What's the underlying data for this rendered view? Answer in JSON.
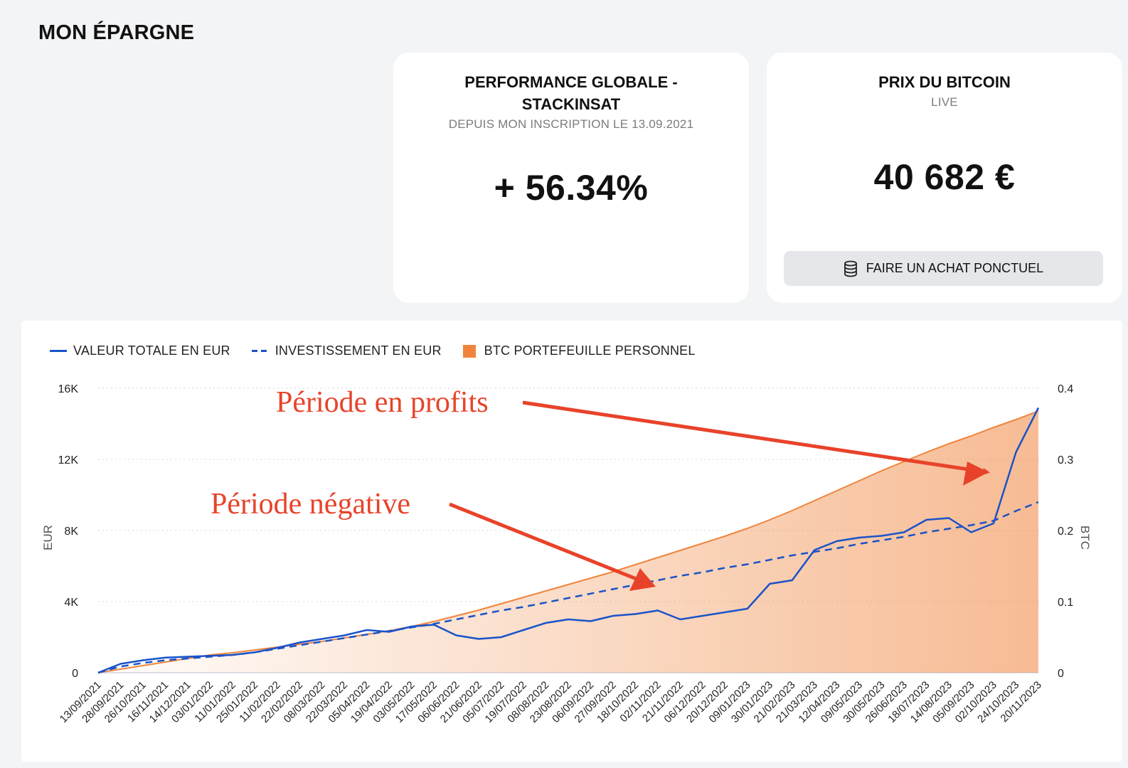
{
  "page": {
    "title": "MON ÉPARGNE"
  },
  "performance_card": {
    "title": "PERFORMANCE GLOBALE - STACKINSAT",
    "subtitle": "DEPUIS MON INSCRIPTION LE 13.09.2021",
    "value": "+ 56.34%"
  },
  "bitcoin_card": {
    "title": "PRIX DU BITCOIN",
    "subtitle": "LIVE",
    "value": "40 682 €",
    "button_label": "FAIRE UN ACHAT PONCTUEL",
    "button_icon": "database-icon"
  },
  "chart": {
    "legend": [
      {
        "label": "VALEUR TOTALE EN EUR",
        "style": "solid",
        "color": "#1a53c8"
      },
      {
        "label": "INVESTISSEMENT EN EUR",
        "style": "dashed",
        "color": "#1a53c8"
      },
      {
        "label": "BTC PORTEFEUILLE PERSONNEL",
        "style": "area",
        "color": "#f0843c"
      }
    ],
    "y_left_title": "EUR",
    "y_right_title": "BTC",
    "annotations": [
      {
        "text": "Période en profits",
        "color": "#e8432a"
      },
      {
        "text": "Période négative",
        "color": "#e8432a"
      }
    ]
  },
  "chart_data": {
    "type": "line",
    "x_labels": [
      "13/09/2021",
      "28/09/2021",
      "26/10/2021",
      "16/11/2021",
      "14/12/2021",
      "03/01/2022",
      "11/01/2022",
      "25/01/2022",
      "11/02/2022",
      "22/02/2022",
      "08/03/2022",
      "22/03/2022",
      "05/04/2022",
      "19/04/2022",
      "03/05/2022",
      "17/05/2022",
      "06/06/2022",
      "21/06/2022",
      "05/07/2022",
      "19/07/2022",
      "08/08/2022",
      "23/08/2022",
      "06/09/2022",
      "27/09/2022",
      "18/10/2022",
      "02/11/2022",
      "21/11/2022",
      "06/12/2022",
      "20/12/2022",
      "09/01/2023",
      "30/01/2023",
      "21/02/2023",
      "21/03/2023",
      "12/04/2023",
      "09/05/2023",
      "30/05/2023",
      "26/06/2023",
      "18/07/2023",
      "14/08/2023",
      "05/09/2023",
      "02/10/2023",
      "24/10/2023",
      "20/11/2023"
    ],
    "y_left": {
      "label": "EUR",
      "ticks": [
        "0",
        "4K",
        "8K",
        "12K",
        "16K"
      ],
      "range": [
        0,
        16000
      ]
    },
    "y_right": {
      "label": "BTC",
      "ticks": [
        "0",
        "0.1",
        "0.2",
        "0.3",
        "0.4"
      ],
      "range": [
        0,
        0.4
      ]
    },
    "grid": "horizontal dotted",
    "legend_position": "top-left",
    "series": [
      {
        "name": "VALEUR TOTALE EN EUR",
        "axis": "left",
        "style": "solid",
        "values": [
          0,
          500,
          700,
          850,
          900,
          950,
          1000,
          1150,
          1400,
          1700,
          1900,
          2100,
          2400,
          2300,
          2600,
          2700,
          2100,
          1900,
          2000,
          2400,
          2800,
          3000,
          2900,
          3200,
          3300,
          3500,
          3000,
          3200,
          3400,
          3600,
          5000,
          5200,
          6900,
          7400,
          7600,
          7700,
          7900,
          8600,
          8700,
          7900,
          8400,
          12400,
          14900
        ]
      },
      {
        "name": "INVESTISSEMENT EN EUR",
        "axis": "left",
        "style": "dashed",
        "values": [
          0,
          350,
          550,
          700,
          800,
          900,
          1000,
          1150,
          1350,
          1550,
          1750,
          1950,
          2150,
          2350,
          2550,
          2750,
          3000,
          3250,
          3500,
          3700,
          3950,
          4200,
          4450,
          4700,
          4950,
          5200,
          5450,
          5650,
          5900,
          6100,
          6350,
          6600,
          6800,
          7000,
          7250,
          7450,
          7650,
          7900,
          8100,
          8300,
          8550,
          9100,
          9600
        ]
      },
      {
        "name": "BTC PORTEFEUILLE PERSONNEL",
        "axis": "right",
        "style": "area",
        "values": [
          0,
          0.005,
          0.01,
          0.015,
          0.02,
          0.025,
          0.028,
          0.032,
          0.036,
          0.04,
          0.044,
          0.049,
          0.054,
          0.059,
          0.065,
          0.072,
          0.08,
          0.088,
          0.097,
          0.106,
          0.115,
          0.124,
          0.133,
          0.142,
          0.152,
          0.162,
          0.172,
          0.182,
          0.192,
          0.203,
          0.215,
          0.228,
          0.242,
          0.256,
          0.27,
          0.284,
          0.297,
          0.31,
          0.322,
          0.333,
          0.345,
          0.356,
          0.368
        ]
      }
    ]
  }
}
